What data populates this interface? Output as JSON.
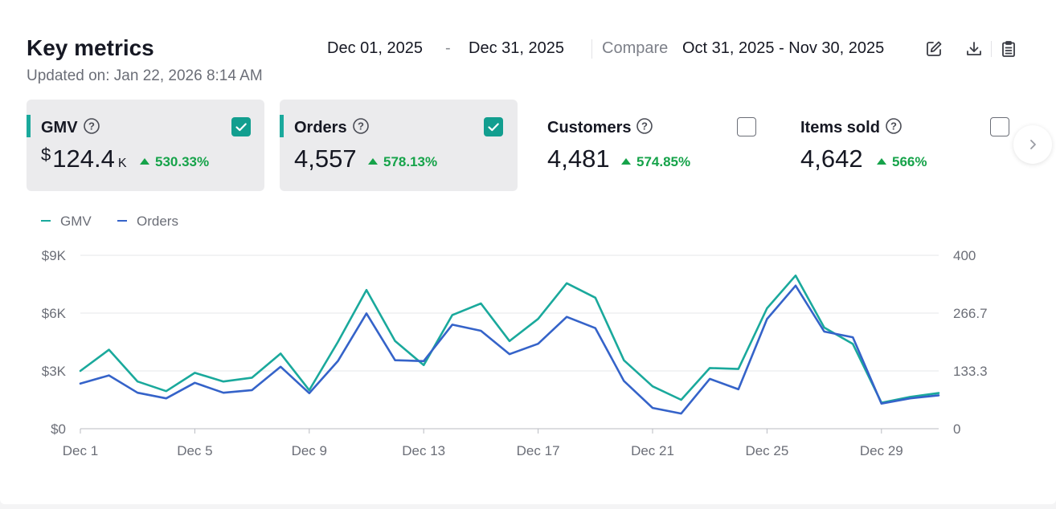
{
  "header": {
    "title": "Key metrics",
    "updated": "Updated on: Jan 22, 2026 8:14 AM",
    "date_start": "Dec 01, 2025",
    "date_sep": "-",
    "date_end": "Dec 31, 2025",
    "compare_label": "Compare",
    "compare_range": "Oct 31, 2025 - Nov 30, 2025",
    "tools": [
      "edit-icon",
      "download-icon",
      "clipboard-icon"
    ]
  },
  "metrics": [
    {
      "name": "GMV",
      "currency": "$",
      "value": "124.4",
      "unit": "K",
      "change": "530.33%",
      "checked": true
    },
    {
      "name": "Orders",
      "currency": "",
      "value": "4,557",
      "unit": "",
      "change": "578.13%",
      "checked": true
    },
    {
      "name": "Customers",
      "currency": "",
      "value": "4,481",
      "unit": "",
      "change": "574.85%",
      "checked": false
    },
    {
      "name": "Items sold",
      "currency": "",
      "value": "4,642",
      "unit": "",
      "change": "566%",
      "checked": false
    }
  ],
  "colors": {
    "gmv": "#1aa99c",
    "orders": "#3563c9",
    "positive": "#16a34a"
  },
  "chart_data": {
    "type": "line",
    "x": [
      "Dec 1",
      "Dec 2",
      "Dec 3",
      "Dec 4",
      "Dec 5",
      "Dec 6",
      "Dec 7",
      "Dec 8",
      "Dec 9",
      "Dec 10",
      "Dec 11",
      "Dec 12",
      "Dec 13",
      "Dec 14",
      "Dec 15",
      "Dec 16",
      "Dec 17",
      "Dec 18",
      "Dec 19",
      "Dec 20",
      "Dec 21",
      "Dec 22",
      "Dec 23",
      "Dec 24",
      "Dec 25",
      "Dec 26",
      "Dec 27",
      "Dec 28",
      "Dec 29",
      "Dec 30",
      "Dec 31"
    ],
    "x_ticks": [
      "Dec 1",
      "Dec 5",
      "Dec 9",
      "Dec 13",
      "Dec 17",
      "Dec 21",
      "Dec 25",
      "Dec 29"
    ],
    "y_left_ticks": [
      "$0",
      "$3K",
      "$6K",
      "$9K"
    ],
    "y_left_lim": [
      0,
      9000
    ],
    "y_right_ticks": [
      "0",
      "133.3",
      "266.7",
      "400"
    ],
    "y_right_lim": [
      0,
      400
    ],
    "grid": true,
    "legend_position": "top-left",
    "series": [
      {
        "name": "GMV",
        "axis": "left",
        "values": [
          3000,
          4100,
          2450,
          1950,
          2900,
          2450,
          2650,
          3900,
          2000,
          4500,
          7200,
          4550,
          3300,
          5900,
          6500,
          4550,
          5700,
          7550,
          6800,
          3550,
          2200,
          1500,
          3150,
          3100,
          6250,
          7950,
          5250,
          4400,
          1350,
          1650,
          1850
        ]
      },
      {
        "name": "Orders",
        "axis": "right",
        "values": [
          104,
          123,
          83,
          70,
          106,
          83,
          89,
          143,
          82,
          156,
          266,
          158,
          156,
          240,
          226,
          172,
          196,
          258,
          232,
          110,
          48,
          35,
          115,
          91,
          253,
          330,
          224,
          211,
          58,
          70,
          77
        ]
      }
    ]
  }
}
